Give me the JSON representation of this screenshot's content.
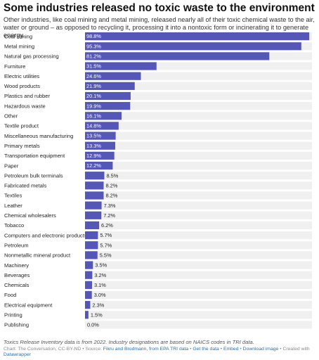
{
  "header": {
    "title": "Some industries released no toxic waste to the environment",
    "subtitle": "Other industries, like coal mining and metal mining, released nearly all of their toxic chemical waste to the air, water or ground – as opposed to recycling it, processing it into a nontoxic form or incinerating it to generate energy."
  },
  "chart_data": {
    "type": "bar",
    "orientation": "horizontal",
    "categories": [
      "Coal mining",
      "Metal mining",
      "Natural gas processing",
      "Furniture",
      "Electric utilities",
      "Wood products",
      "Plastics and rubber",
      "Hazardous waste",
      "Other",
      "Textile product",
      "Miscellaneous manufacturing",
      "Primary metals",
      "Transportation equipment",
      "Paper",
      "Petroleum bulk terminals",
      "Fabricated metals",
      "Textiles",
      "Leather",
      "Chemical wholesalers",
      "Tobacco",
      "Computers and electronic products",
      "Petroleum",
      "Nonmetallic mineral product",
      "Machinery",
      "Beverages",
      "Chemicals",
      "Food",
      "Electrical equipment",
      "Printing",
      "Publishing"
    ],
    "values": [
      98.8,
      95.3,
      81.2,
      31.5,
      24.6,
      21.9,
      20.1,
      19.9,
      16.1,
      14.8,
      13.5,
      13.3,
      12.9,
      12.2,
      8.5,
      8.2,
      8.2,
      7.3,
      7.2,
      6.2,
      5.7,
      5.7,
      5.5,
      3.5,
      3.2,
      3.1,
      3.0,
      2.3,
      1.5,
      0.0
    ],
    "labels": [
      "98.8%",
      "95.3%",
      "81.2%",
      "31.5%",
      "24.6%",
      "21.9%",
      "20.1%",
      "19.9%",
      "16.1%",
      "14.8%",
      "13.5%",
      "13.3%",
      "12.9%",
      "12.2%",
      "8.5%",
      "8.2%",
      "8.2%",
      "7.3%",
      "7.2%",
      "6.2%",
      "5.7%",
      "5.7%",
      "5.5%",
      "3.5%",
      "3.2%",
      "3.1%",
      "3.0%",
      "2.3%",
      "1.5%",
      "0.0%"
    ],
    "xlim": [
      0,
      100
    ],
    "bar_color": "#5456b8",
    "background_bar_color": "#f0f0f0",
    "grid": false,
    "legend": "none"
  },
  "notes": "Toxics Release Inventory data is from 2022. Industry designations are based on NAICS codes in TRI data.",
  "footer": {
    "prefix": "Chart: The Conversation, CC-BY-ND • Source: ",
    "source_link": "Fikru and Brodmann, from EPA TRI data",
    "sep1": " • ",
    "get_data": "Get the data",
    "sep2": " • ",
    "embed": "Embed",
    "sep3": " • ",
    "download": "Download image",
    "created": " • Created with ",
    "datawrapper": "Datawrapper"
  }
}
